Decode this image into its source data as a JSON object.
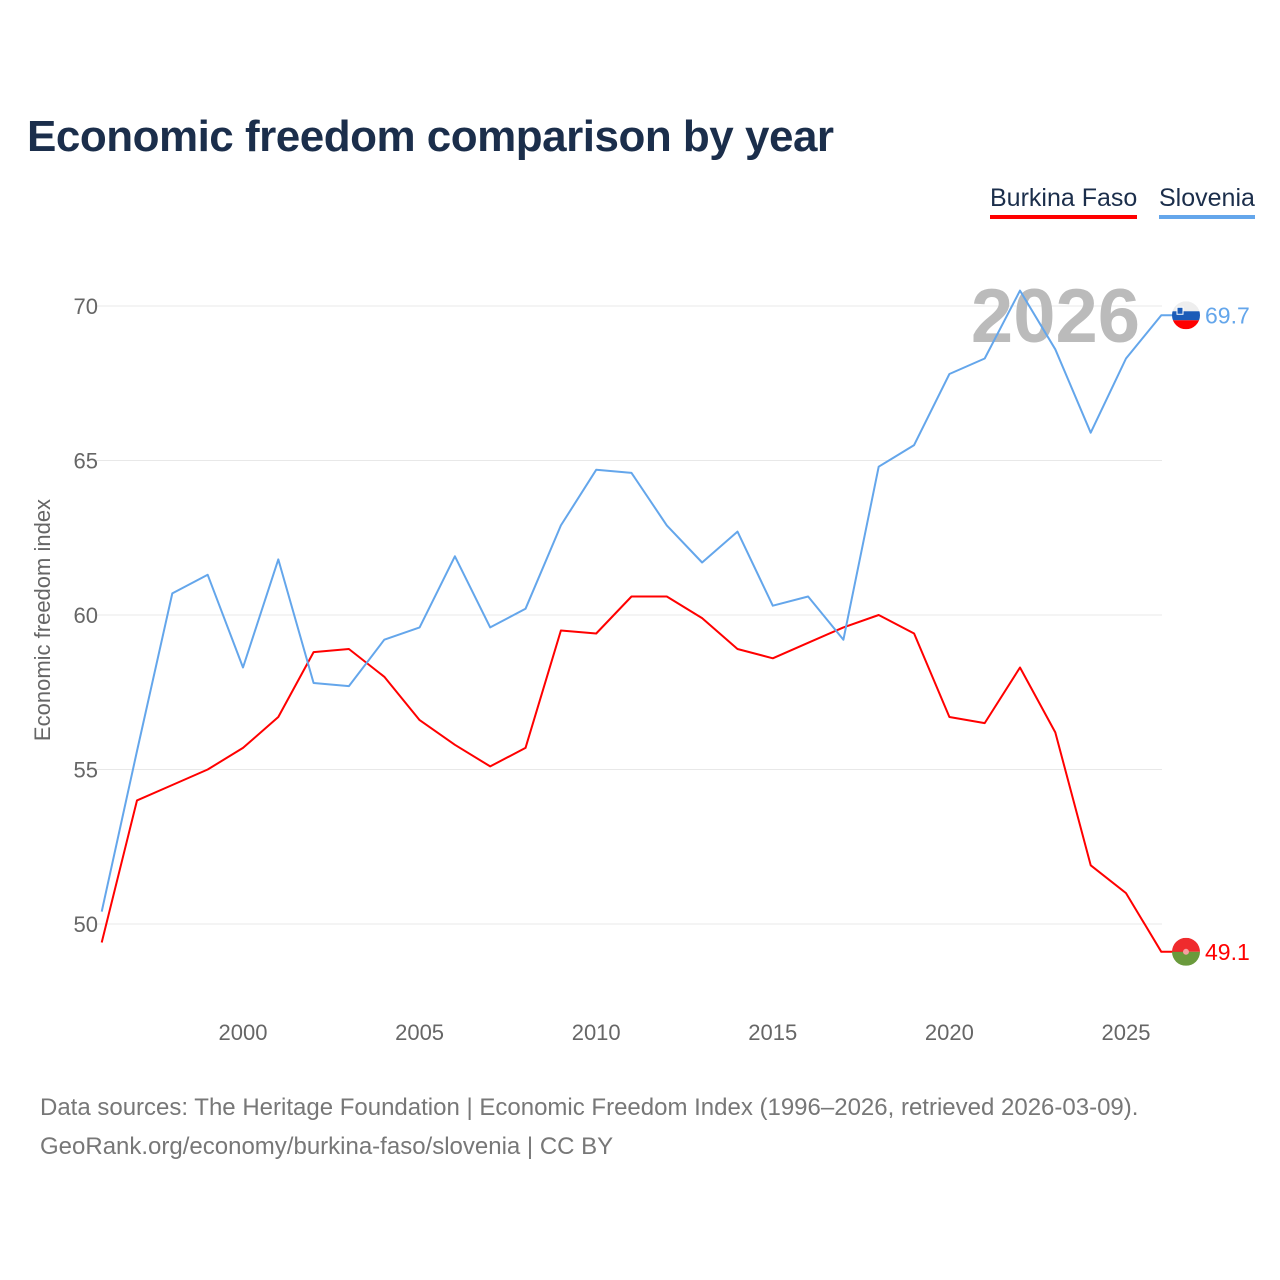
{
  "chart_data": {
    "type": "line",
    "title": "Economic freedom comparison by year",
    "ylabel": "Economic freedom index",
    "xlabel": "",
    "ylim": [
      47,
      71.5
    ],
    "xlim": [
      1996,
      2026
    ],
    "yticks": [
      50,
      55,
      60,
      65,
      70
    ],
    "xticks": [
      2000,
      2005,
      2010,
      2015,
      2020,
      2025
    ],
    "year_watermark": "2026",
    "legend_position": "top-right",
    "x": [
      1996,
      1997,
      1998,
      1999,
      2000,
      2001,
      2002,
      2003,
      2004,
      2005,
      2006,
      2007,
      2008,
      2009,
      2010,
      2011,
      2012,
      2013,
      2014,
      2015,
      2016,
      2017,
      2018,
      2019,
      2020,
      2021,
      2022,
      2023,
      2024,
      2025,
      2026
    ],
    "series": [
      {
        "name": "Burkina Faso",
        "color": "#ff0000",
        "end_label": "49.1",
        "values": [
          49.4,
          54.0,
          54.5,
          55.0,
          55.7,
          56.7,
          58.8,
          58.9,
          58.0,
          56.6,
          55.8,
          55.1,
          55.7,
          59.5,
          59.4,
          60.6,
          60.6,
          59.9,
          58.9,
          58.6,
          59.1,
          59.6,
          60.0,
          59.4,
          56.7,
          56.5,
          58.3,
          56.2,
          51.9,
          51.0,
          49.1
        ]
      },
      {
        "name": "Slovenia",
        "color": "#64a6eb",
        "end_label": "69.7",
        "values": [
          50.4,
          55.6,
          60.7,
          61.3,
          58.3,
          61.8,
          57.8,
          57.7,
          59.2,
          59.6,
          61.9,
          59.6,
          60.2,
          62.9,
          64.7,
          64.6,
          62.9,
          61.7,
          62.7,
          60.3,
          60.6,
          59.2,
          64.8,
          65.5,
          67.8,
          68.3,
          70.5,
          68.6,
          65.9,
          68.3,
          69.7
        ]
      }
    ]
  },
  "sources": {
    "line1": "Data sources: The Heritage Foundation | Economic Freedom Index (1996–2026, retrieved 2026-03-09).",
    "line2": "GeoRank.org/economy/burkina-faso/slovenia | CC BY"
  }
}
